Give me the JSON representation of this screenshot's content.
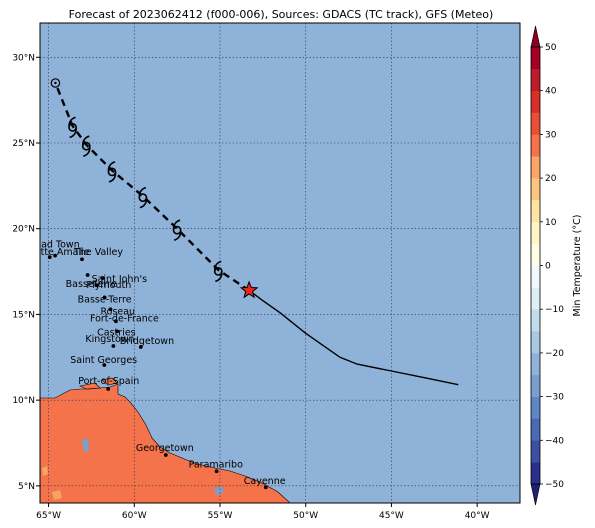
{
  "title": "Forecast of 2023062412 (f000-006), Sources: GDACS (TC track), GFS (Meteo)",
  "colors": {
    "ocean": "#8fb2d8",
    "land": "#f4734a",
    "grid": "#333355",
    "track": "#000000",
    "star": "#e8281c"
  },
  "map": {
    "lon_range": [
      -65.5,
      -37.5
    ],
    "lat_range": [
      4.0,
      32.0
    ],
    "lon_ticks": [
      {
        "value": -65,
        "label": "65°W"
      },
      {
        "value": -60,
        "label": "60°W"
      },
      {
        "value": -55,
        "label": "55°W"
      },
      {
        "value": -50,
        "label": "50°W"
      },
      {
        "value": -45,
        "label": "45°W"
      },
      {
        "value": -40,
        "label": "40°W"
      }
    ],
    "lat_ticks": [
      {
        "value": 5,
        "label": "5°N"
      },
      {
        "value": 10,
        "label": "10°N"
      },
      {
        "value": 15,
        "label": "15°N"
      },
      {
        "value": 20,
        "label": "20°N"
      },
      {
        "value": 25,
        "label": "25°N"
      },
      {
        "value": 30,
        "label": "30°N"
      }
    ],
    "grid": true
  },
  "chart_data": {
    "type": "scatter",
    "title": "Forecast of 2023062412 (f000-006), Sources: GDACS (TC track), GFS (Meteo)",
    "observed_track": [
      [
        -41.1,
        10.9
      ],
      [
        -43.0,
        11.3
      ],
      [
        -45.0,
        11.7
      ],
      [
        -47.0,
        12.1
      ],
      [
        -48.0,
        12.5
      ],
      [
        -50.0,
        13.9
      ],
      [
        -51.5,
        15.1
      ],
      [
        -52.5,
        15.8
      ],
      [
        -53.3,
        16.4
      ]
    ],
    "forecast_track": [
      [
        -53.3,
        16.4
      ],
      [
        -55.1,
        17.6
      ],
      [
        -57.5,
        20.0
      ],
      [
        -59.5,
        21.9
      ],
      [
        -61.3,
        23.4
      ],
      [
        -62.8,
        24.9
      ],
      [
        -63.6,
        26.0
      ],
      [
        -64.6,
        28.5
      ]
    ],
    "current_position": [
      -53.3,
      16.4
    ],
    "storm_symbols": [
      [
        -55.1,
        17.6
      ],
      [
        -57.5,
        20.0
      ],
      [
        -59.5,
        21.9
      ],
      [
        -61.3,
        23.4
      ],
      [
        -62.8,
        24.9
      ],
      [
        -63.6,
        26.0
      ]
    ],
    "end_marker": [
      -64.6,
      28.5
    ],
    "cities": [
      {
        "name": "Road Town",
        "lon": -64.62,
        "lat": 18.43
      },
      {
        "name": "Charlotte Amalie",
        "lon": -64.93,
        "lat": 18.34
      },
      {
        "name": "The Valley",
        "lon": -63.05,
        "lat": 18.22
      },
      {
        "name": "Basseterre",
        "lon": -62.72,
        "lat": 17.3
      },
      {
        "name": "Saint John's",
        "lon": -61.85,
        "lat": 17.12
      },
      {
        "name": "Plymouth",
        "lon": -62.21,
        "lat": 16.71
      },
      {
        "name": "Basse-Terre",
        "lon": -61.73,
        "lat": 15.99
      },
      {
        "name": "Roseau",
        "lon": -61.39,
        "lat": 15.3
      },
      {
        "name": "Fort-de-France",
        "lon": -61.07,
        "lat": 14.6
      },
      {
        "name": "Castries",
        "lon": -61.0,
        "lat": 14.01
      },
      {
        "name": "Kingstown",
        "lon": -61.22,
        "lat": 13.16
      },
      {
        "name": "Bridgetown",
        "lon": -59.62,
        "lat": 13.1
      },
      {
        "name": "Saint Georges",
        "lon": -61.75,
        "lat": 12.05
      },
      {
        "name": "Port-of-Spain",
        "lon": -61.52,
        "lat": 10.65
      },
      {
        "name": "Georgetown",
        "lon": -58.16,
        "lat": 6.8
      },
      {
        "name": "Paramaribo",
        "lon": -55.2,
        "lat": 5.85
      },
      {
        "name": "Cayenne",
        "lon": -52.33,
        "lat": 4.92
      }
    ],
    "colorbar": {
      "label": "Min Temperature (°C)",
      "ticks": [
        {
          "value": 50,
          "label": "50"
        },
        {
          "value": 40,
          "label": "40"
        },
        {
          "value": 30,
          "label": "30"
        },
        {
          "value": 20,
          "label": "20"
        },
        {
          "value": 10,
          "label": "10"
        },
        {
          "value": 0,
          "label": "0"
        },
        {
          "value": -10,
          "label": "−10"
        },
        {
          "value": -20,
          "label": "−20"
        },
        {
          "value": -30,
          "label": "−30"
        },
        {
          "value": -40,
          "label": "−40"
        },
        {
          "value": -50,
          "label": "−50"
        }
      ],
      "levels": [
        {
          "from": -50,
          "to": -45,
          "color": "#2b2f8c"
        },
        {
          "from": -45,
          "to": -40,
          "color": "#3c4fa3"
        },
        {
          "from": -40,
          "to": -35,
          "color": "#4a6ab5"
        },
        {
          "from": -35,
          "to": -30,
          "color": "#5f86c2"
        },
        {
          "from": -30,
          "to": -25,
          "color": "#79a0cd"
        },
        {
          "from": -25,
          "to": -20,
          "color": "#8fb2d8"
        },
        {
          "from": -20,
          "to": -15,
          "color": "#a9c9e2"
        },
        {
          "from": -15,
          "to": -10,
          "color": "#c3dcec"
        },
        {
          "from": -10,
          "to": -5,
          "color": "#ddeef6"
        },
        {
          "from": -5,
          "to": 0,
          "color": "#f1f9fd"
        },
        {
          "from": 0,
          "to": 5,
          "color": "#fefee8"
        },
        {
          "from": 5,
          "to": 10,
          "color": "#fff6c6"
        },
        {
          "from": 10,
          "to": 15,
          "color": "#fee4a0"
        },
        {
          "from": 15,
          "to": 20,
          "color": "#fdc582"
        },
        {
          "from": 20,
          "to": 25,
          "color": "#fba569"
        },
        {
          "from": 25,
          "to": 30,
          "color": "#f4734a"
        },
        {
          "from": 30,
          "to": 35,
          "color": "#e84f34"
        },
        {
          "from": 35,
          "to": 40,
          "color": "#d73027"
        },
        {
          "from": 40,
          "to": 45,
          "color": "#bd1c2a"
        },
        {
          "from": 45,
          "to": 50,
          "color": "#a50026"
        }
      ],
      "extend_low_color": "#1f1f7a",
      "extend_high_color": "#8b0021"
    }
  }
}
